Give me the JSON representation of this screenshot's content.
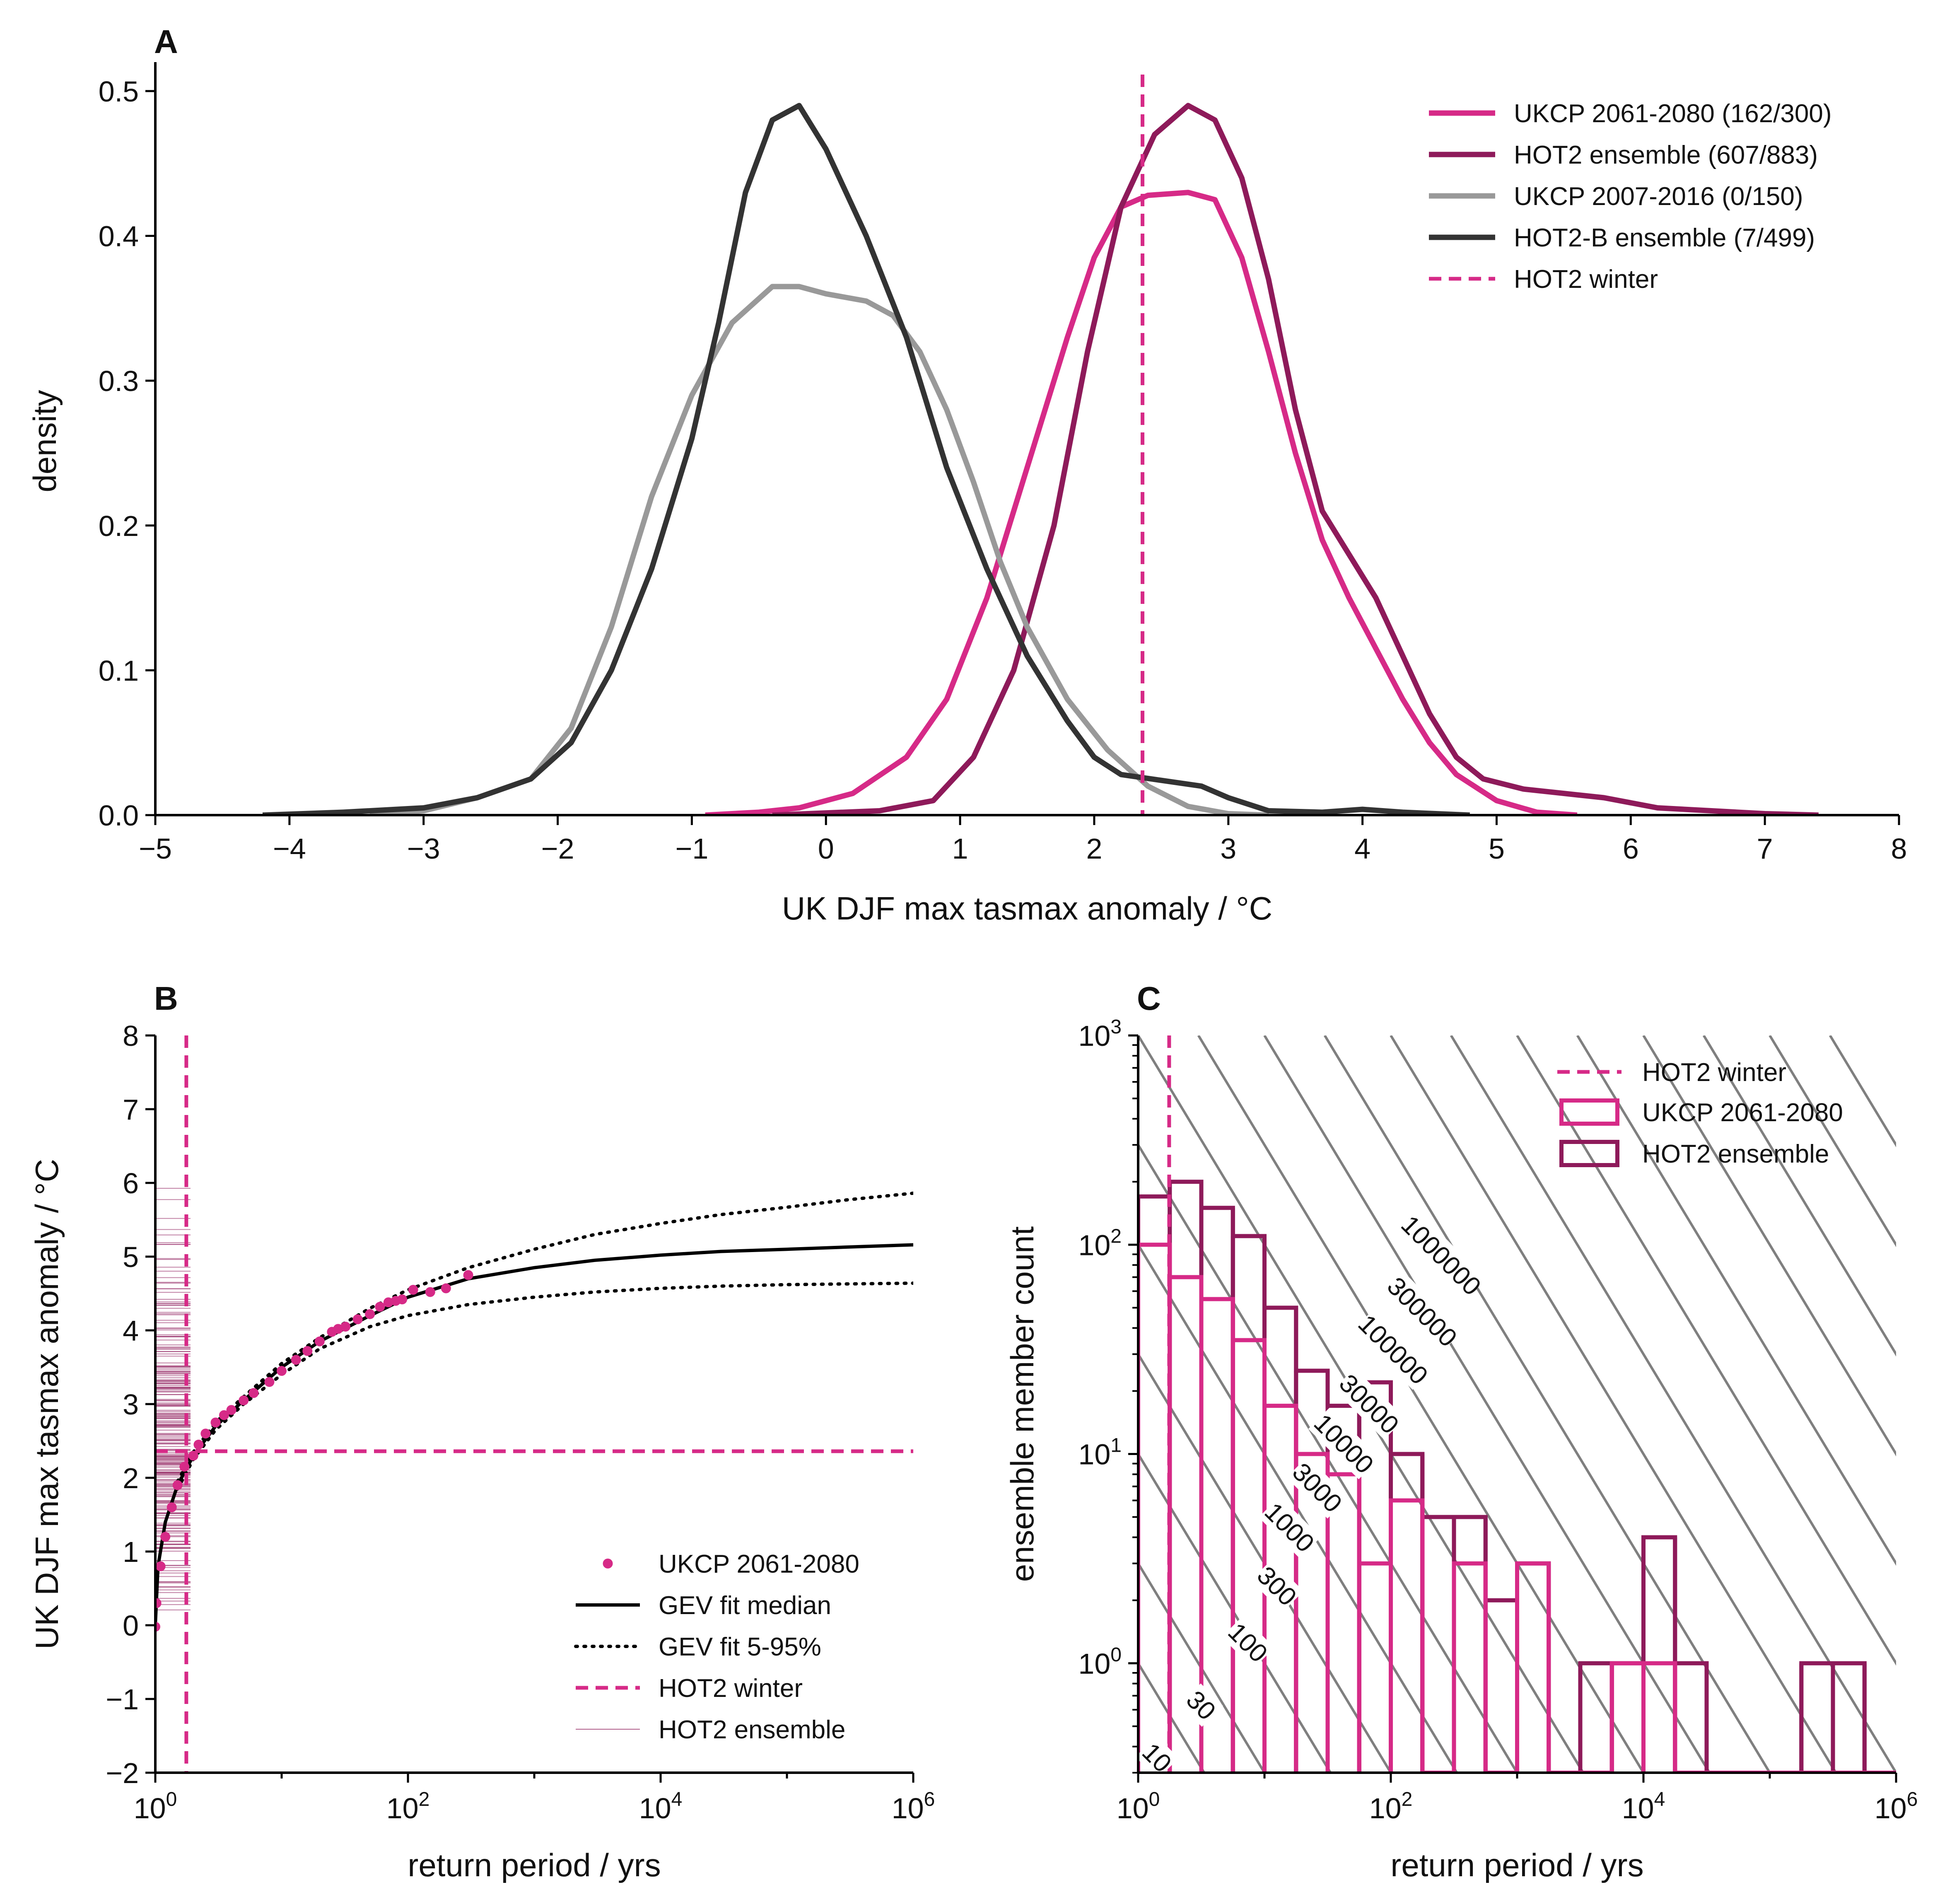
{
  "colors": {
    "ukcp_future": "#d62a87",
    "hot2_ensemble": "#8e1a5a",
    "ukcp_present": "#999999",
    "hot2b_ensemble": "#333333",
    "contour": "#7f7f7f",
    "axis": "#000000"
  },
  "chart_data": [
    {
      "panel": "A",
      "type": "line",
      "title": "",
      "xlabel": "UK DJF max tasmax anomaly / °C",
      "ylabel": "density",
      "xlim": [
        -5,
        8
      ],
      "ylim": [
        0,
        0.52
      ],
      "xticks": [
        -5,
        -4,
        -3,
        -2,
        -1,
        0,
        1,
        2,
        3,
        4,
        5,
        6,
        7,
        8
      ],
      "xtick_labels": [
        "−5",
        "−4",
        "−3",
        "−2",
        "−1",
        "0",
        "1",
        "2",
        "3",
        "4",
        "5",
        "6",
        "7",
        "8"
      ],
      "yticks": [
        0,
        0.1,
        0.2,
        0.3,
        0.4,
        0.5
      ],
      "ytick_labels": [
        "0.0",
        "0.1",
        "0.2",
        "0.3",
        "0.4",
        "0.5"
      ],
      "legend_position": "top-right",
      "series": [
        {
          "name": "UKCP 2061-2080 (162/300)",
          "color_key": "ukcp_future",
          "points": [
            [
              -0.9,
              0
            ],
            [
              -0.5,
              0.002
            ],
            [
              -0.2,
              0.005
            ],
            [
              0.2,
              0.015
            ],
            [
              0.6,
              0.04
            ],
            [
              0.9,
              0.08
            ],
            [
              1.2,
              0.15
            ],
            [
              1.5,
              0.24
            ],
            [
              1.8,
              0.33
            ],
            [
              2.0,
              0.385
            ],
            [
              2.2,
              0.42
            ],
            [
              2.4,
              0.428
            ],
            [
              2.7,
              0.43
            ],
            [
              2.9,
              0.425
            ],
            [
              3.1,
              0.385
            ],
            [
              3.3,
              0.32
            ],
            [
              3.5,
              0.25
            ],
            [
              3.7,
              0.19
            ],
            [
              3.9,
              0.15
            ],
            [
              4.1,
              0.115
            ],
            [
              4.3,
              0.08
            ],
            [
              4.5,
              0.05
            ],
            [
              4.7,
              0.028
            ],
            [
              5.0,
              0.01
            ],
            [
              5.3,
              0.002
            ],
            [
              5.6,
              0
            ]
          ]
        },
        {
          "name": "HOT2 ensemble (607/883)",
          "color_key": "hot2_ensemble",
          "points": [
            [
              -0.4,
              0
            ],
            [
              0.4,
              0.003
            ],
            [
              0.8,
              0.01
            ],
            [
              1.1,
              0.04
            ],
            [
              1.4,
              0.1
            ],
            [
              1.7,
              0.2
            ],
            [
              1.95,
              0.32
            ],
            [
              2.2,
              0.42
            ],
            [
              2.45,
              0.47
            ],
            [
              2.7,
              0.49
            ],
            [
              2.9,
              0.48
            ],
            [
              3.1,
              0.44
            ],
            [
              3.3,
              0.37
            ],
            [
              3.5,
              0.28
            ],
            [
              3.7,
              0.21
            ],
            [
              3.9,
              0.18
            ],
            [
              4.1,
              0.15
            ],
            [
              4.3,
              0.11
            ],
            [
              4.5,
              0.07
            ],
            [
              4.7,
              0.04
            ],
            [
              4.9,
              0.025
            ],
            [
              5.2,
              0.018
            ],
            [
              5.5,
              0.015
            ],
            [
              5.8,
              0.012
            ],
            [
              6.2,
              0.005
            ],
            [
              6.6,
              0.003
            ],
            [
              7.0,
              0.001
            ],
            [
              7.4,
              0
            ]
          ]
        },
        {
          "name": "UKCP 2007-2016 (0/150)",
          "color_key": "ukcp_present",
          "points": [
            [
              -3.4,
              0
            ],
            [
              -3.0,
              0.003
            ],
            [
              -2.6,
              0.012
            ],
            [
              -2.2,
              0.025
            ],
            [
              -1.9,
              0.06
            ],
            [
              -1.6,
              0.13
            ],
            [
              -1.3,
              0.22
            ],
            [
              -1.0,
              0.29
            ],
            [
              -0.7,
              0.34
            ],
            [
              -0.4,
              0.365
            ],
            [
              -0.2,
              0.365
            ],
            [
              0.0,
              0.36
            ],
            [
              0.3,
              0.355
            ],
            [
              0.5,
              0.345
            ],
            [
              0.7,
              0.32
            ],
            [
              0.9,
              0.28
            ],
            [
              1.1,
              0.23
            ],
            [
              1.3,
              0.175
            ],
            [
              1.5,
              0.13
            ],
            [
              1.8,
              0.08
            ],
            [
              2.1,
              0.045
            ],
            [
              2.4,
              0.02
            ],
            [
              2.7,
              0.006
            ],
            [
              3.0,
              0.001
            ],
            [
              3.3,
              0
            ]
          ]
        },
        {
          "name": "HOT2-B ensemble (7/499)",
          "color_key": "hot2b_ensemble",
          "points": [
            [
              -4.2,
              0
            ],
            [
              -3.6,
              0.002
            ],
            [
              -3.0,
              0.005
            ],
            [
              -2.6,
              0.012
            ],
            [
              -2.2,
              0.025
            ],
            [
              -1.9,
              0.05
            ],
            [
              -1.6,
              0.1
            ],
            [
              -1.3,
              0.17
            ],
            [
              -1.0,
              0.26
            ],
            [
              -0.8,
              0.34
            ],
            [
              -0.6,
              0.43
            ],
            [
              -0.4,
              0.48
            ],
            [
              -0.2,
              0.49
            ],
            [
              0.0,
              0.46
            ],
            [
              0.3,
              0.4
            ],
            [
              0.6,
              0.33
            ],
            [
              0.9,
              0.24
            ],
            [
              1.2,
              0.17
            ],
            [
              1.5,
              0.11
            ],
            [
              1.8,
              0.065
            ],
            [
              2.0,
              0.04
            ],
            [
              2.2,
              0.028
            ],
            [
              2.5,
              0.024
            ],
            [
              2.8,
              0.02
            ],
            [
              3.0,
              0.012
            ],
            [
              3.3,
              0.003
            ],
            [
              3.7,
              0.002
            ],
            [
              4.0,
              0.004
            ],
            [
              4.3,
              0.002
            ],
            [
              4.8,
              0
            ]
          ]
        }
      ],
      "reference_line": {
        "name": "HOT2 winter",
        "x": 2.36,
        "color_key": "ukcp_future",
        "style": "dashed"
      }
    },
    {
      "panel": "B",
      "type": "scatter",
      "title": "",
      "xlabel": "return period / yrs",
      "ylabel": "UK DJF max tasmax anomaly / °C",
      "xscale": "log",
      "xlim": [
        1,
        1000000
      ],
      "ylim": [
        -2,
        8
      ],
      "xticks": [
        1,
        100,
        10000,
        1000000
      ],
      "xtick_labels": [
        [
          "10",
          "0"
        ],
        [
          "10",
          "2"
        ],
        [
          "10",
          "4"
        ],
        [
          "10",
          "6"
        ]
      ],
      "yticks": [
        -2,
        -1,
        0,
        1,
        2,
        3,
        4,
        5,
        6,
        7,
        8
      ],
      "ytick_labels": [
        "−2",
        "−1",
        "0",
        "1",
        "2",
        "3",
        "4",
        "5",
        "6",
        "7",
        "8"
      ],
      "legend_position": "lower-right",
      "legend_labels": [
        "UKCP 2061-2080",
        "GEV fit median",
        "GEV fit 5-95%",
        "HOT2 winter",
        "HOT2 ensemble"
      ],
      "ukcp_points": [
        [
          1.0,
          -0.02
        ],
        [
          1.02,
          0.3
        ],
        [
          1.1,
          0.8
        ],
        [
          1.2,
          1.2
        ],
        [
          1.35,
          1.6
        ],
        [
          1.5,
          1.9
        ],
        [
          1.7,
          2.15
        ],
        [
          2.0,
          2.3
        ],
        [
          2.2,
          2.45
        ],
        [
          2.5,
          2.6
        ],
        [
          3.0,
          2.75
        ],
        [
          3.5,
          2.85
        ],
        [
          4.0,
          2.92
        ],
        [
          5.0,
          3.05
        ],
        [
          6.0,
          3.15
        ],
        [
          8.0,
          3.3
        ],
        [
          10,
          3.45
        ],
        [
          13,
          3.6
        ],
        [
          16,
          3.72
        ],
        [
          20,
          3.85
        ],
        [
          25,
          3.98
        ],
        [
          28,
          4.02
        ],
        [
          32,
          4.05
        ],
        [
          40,
          4.15
        ],
        [
          50,
          4.22
        ],
        [
          60,
          4.32
        ],
        [
          70,
          4.38
        ],
        [
          80,
          4.4
        ],
        [
          90,
          4.42
        ],
        [
          110,
          4.55
        ],
        [
          150,
          4.52
        ],
        [
          200,
          4.57
        ],
        [
          300,
          4.75
        ]
      ],
      "gev_median": [
        [
          1.0,
          0.0
        ],
        [
          1.05,
          0.8
        ],
        [
          1.2,
          1.4
        ],
        [
          1.5,
          1.9
        ],
        [
          2,
          2.3
        ],
        [
          3,
          2.7
        ],
        [
          5,
          3.05
        ],
        [
          10,
          3.5
        ],
        [
          20,
          3.85
        ],
        [
          50,
          4.2
        ],
        [
          100,
          4.45
        ],
        [
          300,
          4.7
        ],
        [
          1000,
          4.85
        ],
        [
          3000,
          4.95
        ],
        [
          10000,
          5.02
        ],
        [
          30000,
          5.07
        ],
        [
          100000,
          5.1
        ],
        [
          300000,
          5.13
        ],
        [
          1000000,
          5.16
        ]
      ],
      "gev_upper": [
        [
          1.5,
          1.95
        ],
        [
          2,
          2.35
        ],
        [
          3,
          2.75
        ],
        [
          5,
          3.1
        ],
        [
          10,
          3.55
        ],
        [
          20,
          3.9
        ],
        [
          50,
          4.3
        ],
        [
          100,
          4.55
        ],
        [
          300,
          4.85
        ],
        [
          1000,
          5.1
        ],
        [
          3000,
          5.3
        ],
        [
          10000,
          5.45
        ],
        [
          30000,
          5.57
        ],
        [
          100000,
          5.67
        ],
        [
          300000,
          5.77
        ],
        [
          1000000,
          5.86
        ]
      ],
      "gev_lower": [
        [
          1.5,
          1.85
        ],
        [
          2,
          2.25
        ],
        [
          3,
          2.65
        ],
        [
          5,
          3.0
        ],
        [
          10,
          3.4
        ],
        [
          20,
          3.75
        ],
        [
          50,
          4.05
        ],
        [
          100,
          4.2
        ],
        [
          300,
          4.35
        ],
        [
          1000,
          4.45
        ],
        [
          3000,
          4.52
        ],
        [
          10000,
          4.57
        ],
        [
          30000,
          4.6
        ],
        [
          100000,
          4.62
        ],
        [
          300000,
          4.63
        ],
        [
          1000000,
          4.64
        ]
      ],
      "hot2_winter": {
        "return_period": 1.76,
        "value": 2.36
      },
      "hot2_ensemble_range": [
        0.2,
        6.8
      ]
    },
    {
      "panel": "C",
      "type": "bar",
      "title": "",
      "xlabel": "return period / yrs",
      "ylabel": "ensemble member count",
      "xscale": "log",
      "yscale": "log",
      "xlim": [
        1,
        1000000
      ],
      "ylim": [
        0.3,
        1000
      ],
      "xticks": [
        1,
        100,
        10000,
        1000000
      ],
      "xtick_labels": [
        [
          "10",
          "0"
        ],
        [
          "10",
          "2"
        ],
        [
          "10",
          "4"
        ],
        [
          "10",
          "6"
        ]
      ],
      "yticks": [
        1,
        10,
        100,
        1000
      ],
      "ytick_labels": [
        [
          "10",
          "0"
        ],
        [
          "10",
          "1"
        ],
        [
          "10",
          "2"
        ],
        [
          "10",
          "3"
        ]
      ],
      "legend_position": "top-right",
      "legend_labels": [
        "HOT2 winter",
        "UKCP 2061-2080",
        "HOT2 ensemble"
      ],
      "bin_edges_log10": [
        0,
        0.25,
        0.5,
        0.75,
        1,
        1.25,
        1.5,
        1.75,
        2,
        2.25,
        2.5,
        2.75,
        3,
        3.25,
        3.5,
        3.75,
        4,
        4.25,
        4.5,
        4.75,
        5,
        5.25,
        5.5,
        5.75,
        6
      ],
      "ukcp_counts": [
        100,
        70,
        55,
        35,
        17,
        10,
        8,
        3,
        6,
        0.3,
        3,
        0.3,
        3,
        0.3,
        0.3,
        1,
        1,
        0.3,
        0.3,
        0.3,
        0.3,
        0.3,
        0.3,
        0.3
      ],
      "hot2_counts": [
        170,
        200,
        150,
        110,
        50,
        25,
        17,
        22,
        10,
        5,
        5,
        2,
        3,
        0.3,
        1,
        1,
        4,
        1,
        0.3,
        0.3,
        0.3,
        1,
        1,
        0.3
      ],
      "hot2_winter_return_period": 1.76,
      "contour_levels": [
        10,
        30,
        100,
        300,
        1000,
        3000,
        10000,
        30000,
        100000,
        300000,
        1000000
      ],
      "contour_labels": [
        "10",
        "30",
        "100",
        "300",
        "1000",
        "3000",
        "10000",
        "30000",
        "100000",
        "300000",
        "1000000"
      ]
    }
  ]
}
